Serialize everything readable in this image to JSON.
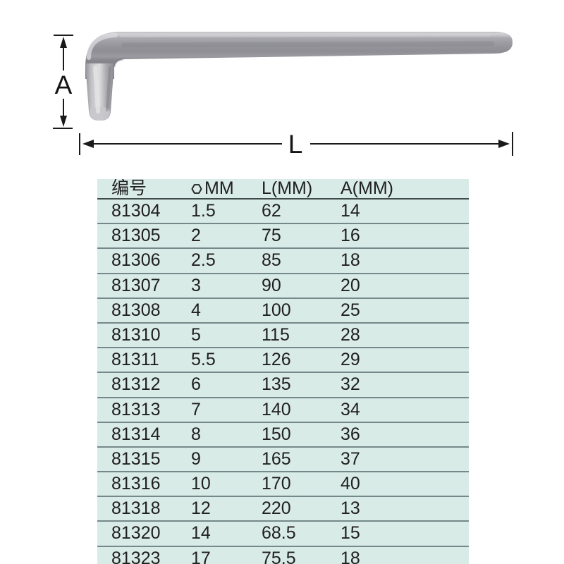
{
  "diagram": {
    "dimension_labels": {
      "a": "A",
      "l": "L"
    },
    "colors": {
      "dimension_line": "#1a1a1a",
      "metal_light": "#d6d6da",
      "metal_mid": "#98989e",
      "metal_dark": "#86868c"
    }
  },
  "table": {
    "headers": [
      {
        "label": "编号"
      },
      {
        "icon": "hex-size-icon",
        "label": "MM"
      },
      {
        "label": "L(MM)"
      },
      {
        "label": "A(MM)"
      }
    ],
    "rows": [
      [
        "81304",
        "1.5",
        "62",
        "14"
      ],
      [
        "81305",
        "2",
        "75",
        "16"
      ],
      [
        "81306",
        "2.5",
        "85",
        "18"
      ],
      [
        "81307",
        "3",
        "90",
        "20"
      ],
      [
        "81308",
        "4",
        "100",
        "25"
      ],
      [
        "81310",
        "5",
        "115",
        "28"
      ],
      [
        "81311",
        "5.5",
        "126",
        "29"
      ],
      [
        "81312",
        "6",
        "135",
        "32"
      ],
      [
        "81313",
        "7",
        "140",
        "34"
      ],
      [
        "81314",
        "8",
        "150",
        "36"
      ],
      [
        "81315",
        "9",
        "165",
        "37"
      ],
      [
        "81316",
        "10",
        "170",
        "40"
      ],
      [
        "81318",
        "12",
        "220",
        "13"
      ],
      [
        "81320",
        "14",
        "68.5",
        "15"
      ],
      [
        "81323",
        "17",
        "75.5",
        "18"
      ]
    ],
    "cell_names": [
      "cell-part-number",
      "cell-hex-size-mm",
      "cell-l-mm",
      "cell-a-mm"
    ],
    "colors": {
      "background": "#d9ebe7",
      "row_line": "#76898a",
      "header_line": "#3f4a4a",
      "text": "#1f1f1f"
    }
  }
}
